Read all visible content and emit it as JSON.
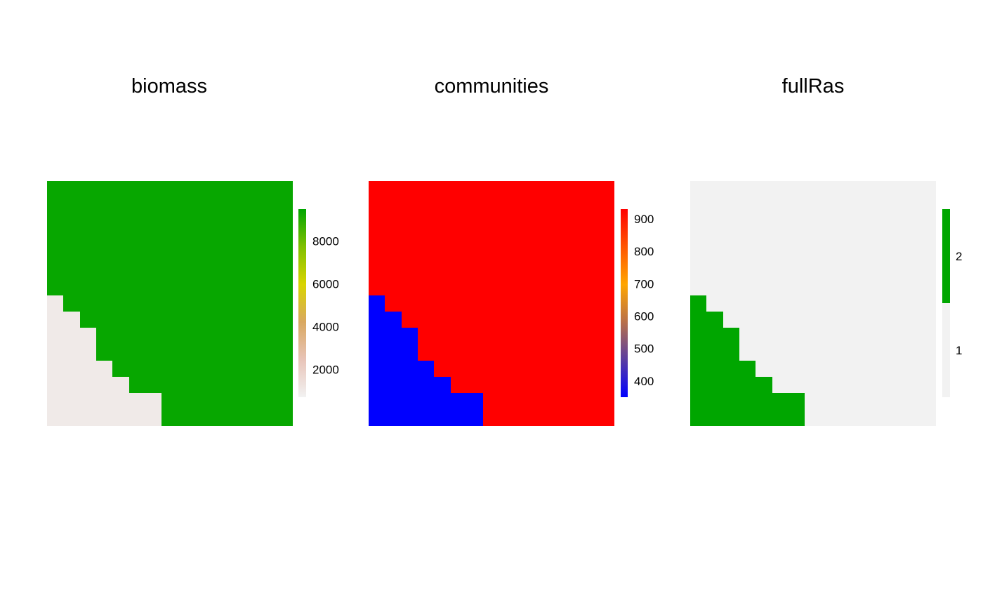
{
  "chart_data": [
    {
      "type": "heatmap",
      "title": "biomass",
      "grid": false,
      "legend": "right",
      "nrow": 15,
      "ncol": 15,
      "low_value": 1000,
      "high_value": 9400,
      "boundary_cols_by_row": [
        0,
        0,
        0,
        0,
        0,
        0,
        0,
        1,
        2,
        3,
        3,
        4,
        5,
        7,
        7
      ],
      "low_region": "left-of-boundary",
      "colorbar": {
        "min": 700,
        "max": 9500,
        "ticks": [
          2000,
          4000,
          6000,
          8000
        ],
        "tick_labels": [
          "2000",
          "4000",
          "6000",
          "8000"
        ],
        "palette": [
          "#f2f2f2",
          "#e8c4b8",
          "#d9a860",
          "#d9d400",
          "#80c000",
          "#00a600"
        ]
      }
    },
    {
      "type": "heatmap",
      "title": "communities",
      "grid": false,
      "legend": "right",
      "nrow": 15,
      "ncol": 15,
      "low_value": 350,
      "high_value": 930,
      "boundary_cols_by_row": [
        0,
        0,
        0,
        0,
        0,
        0,
        0,
        1,
        2,
        3,
        3,
        4,
        5,
        7,
        7
      ],
      "low_region": "left-of-boundary",
      "colorbar": {
        "min": 350,
        "max": 930,
        "ticks": [
          400,
          500,
          600,
          700,
          800,
          900
        ],
        "tick_labels": [
          "400",
          "500",
          "600",
          "700",
          "800",
          "900"
        ],
        "palette": [
          "#0000ff",
          "#5a3da0",
          "#b8704a",
          "#ffa500",
          "#ff5500",
          "#ff0000"
        ]
      }
    },
    {
      "type": "heatmap",
      "title": "fullRas",
      "grid": false,
      "legend": "right",
      "nrow": 15,
      "ncol": 15,
      "low_value": 1,
      "high_value": 2,
      "boundary_cols_by_row": [
        0,
        0,
        0,
        0,
        0,
        0,
        0,
        1,
        2,
        3,
        3,
        4,
        5,
        7,
        7
      ],
      "low_region": "right-of-boundary",
      "colorbar": {
        "categorical": true,
        "categories": [
          "1",
          "2"
        ],
        "colors": [
          "#f2f2f2",
          "#00a600"
        ]
      }
    }
  ],
  "colors": {
    "low_grey": "#f2f2f2",
    "green": "#00a600",
    "blue": "#0000ff",
    "red": "#ff0000"
  }
}
